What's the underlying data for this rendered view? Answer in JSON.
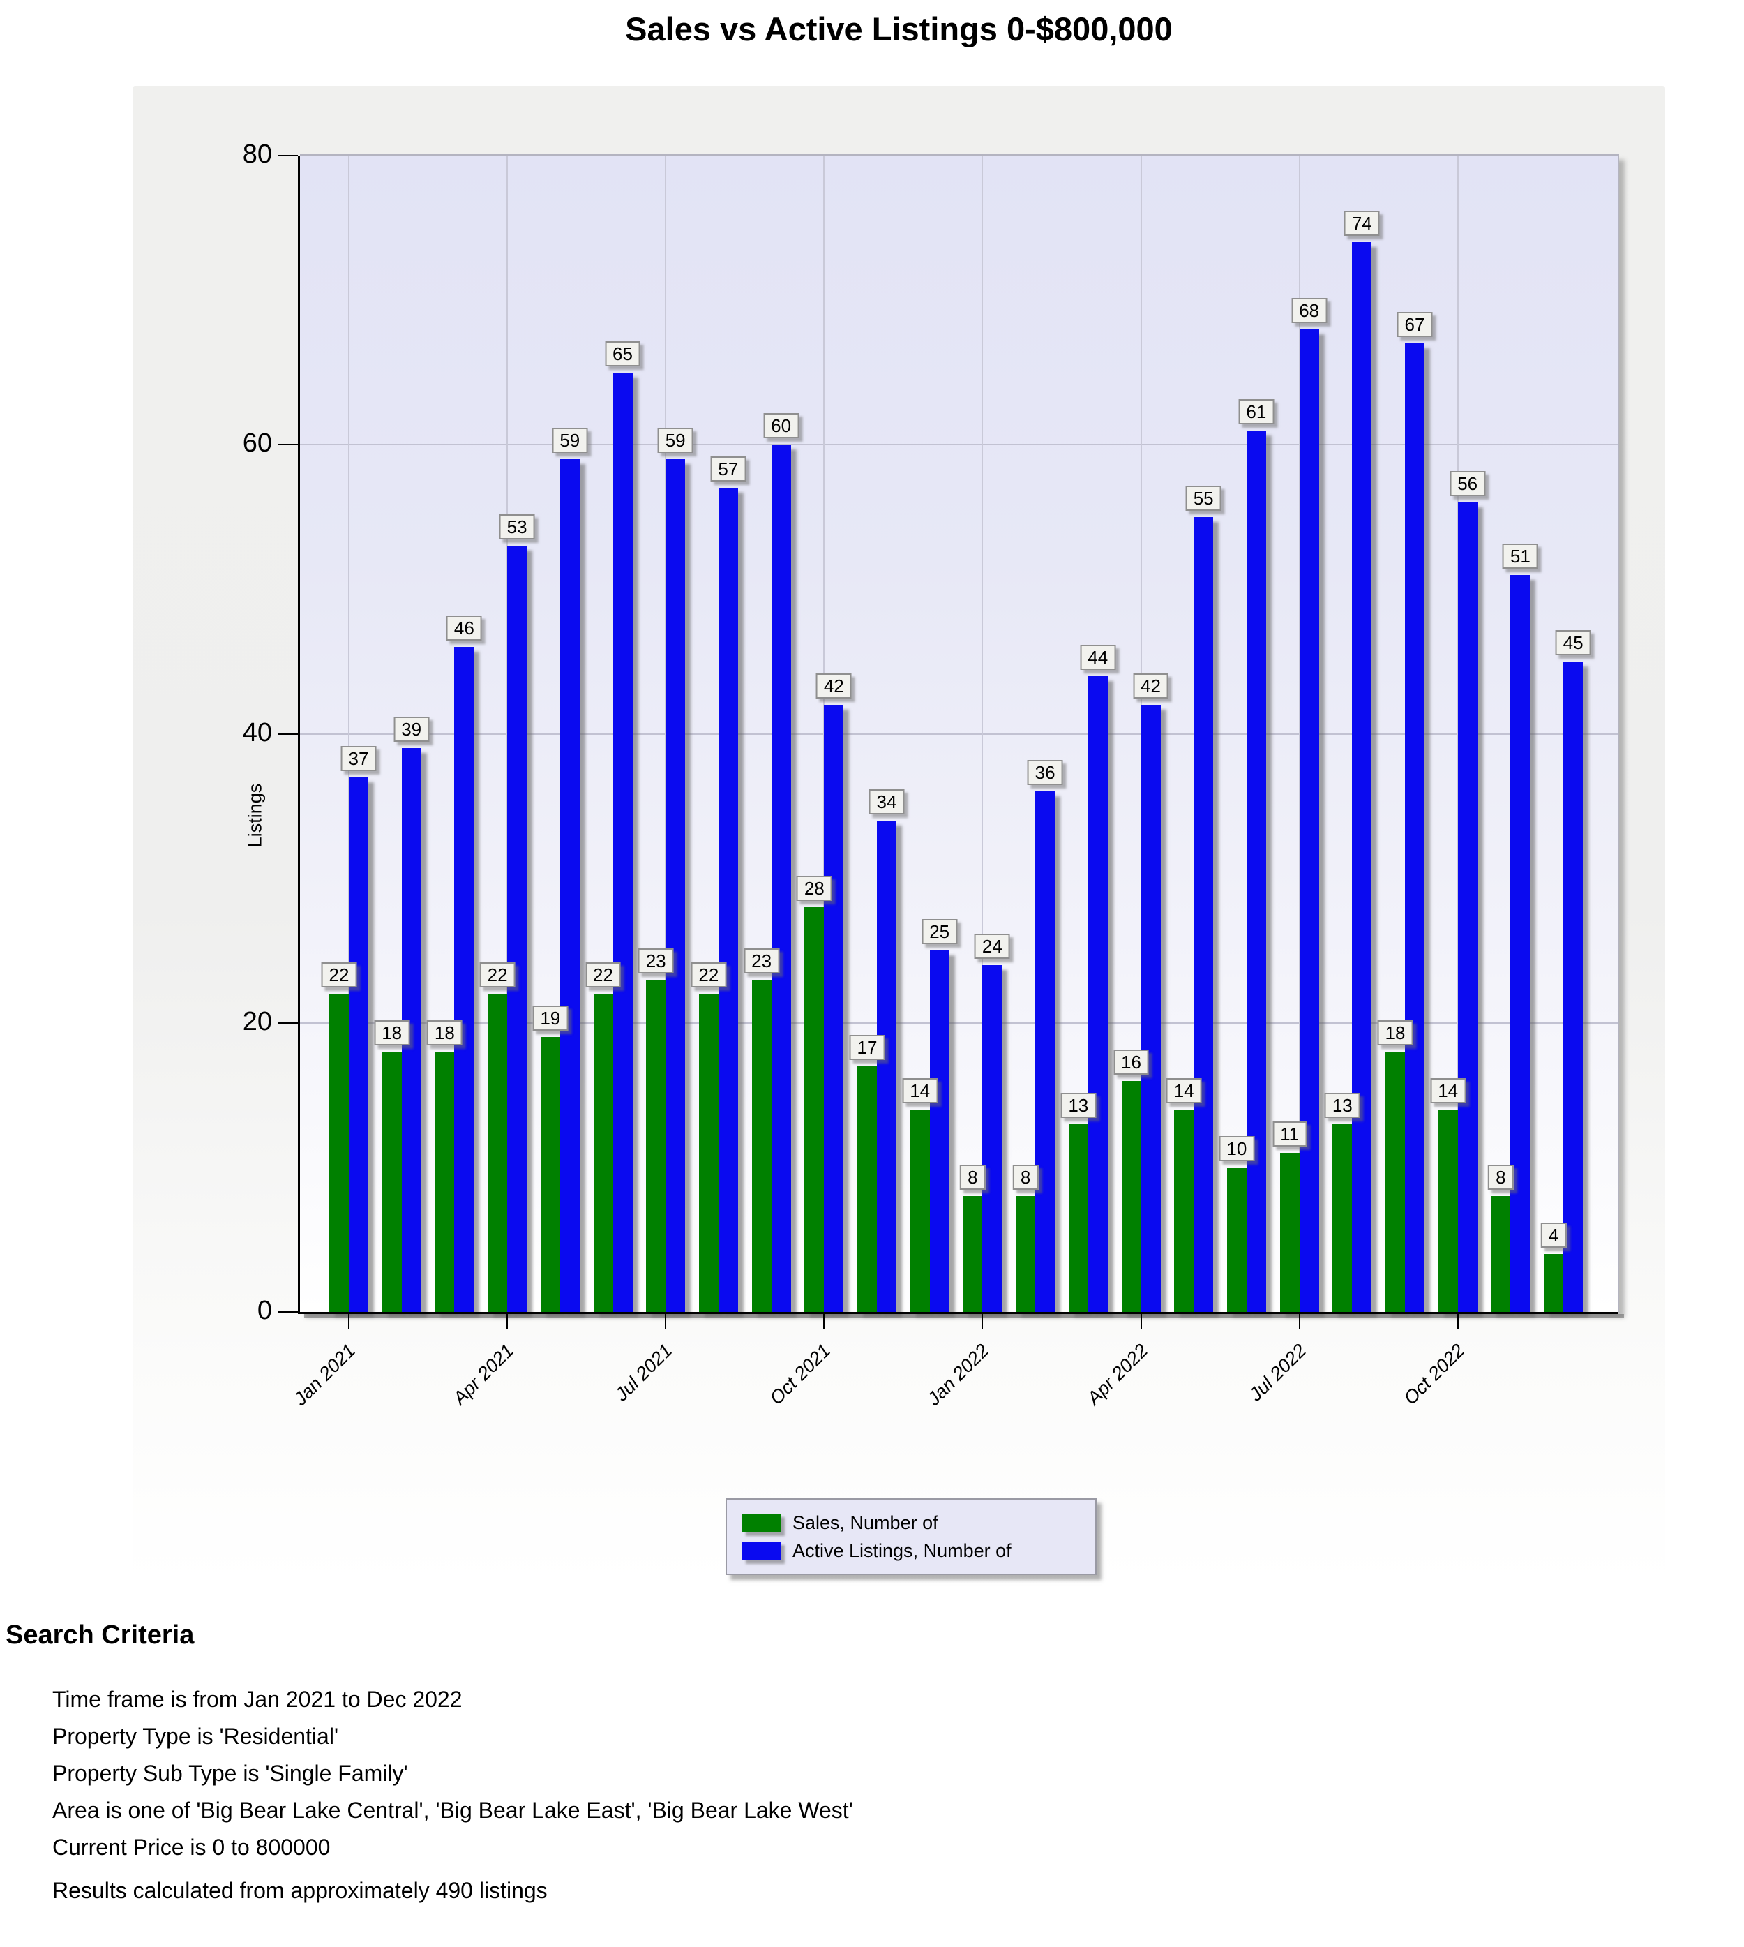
{
  "title": "Sales vs Active Listings 0-$800,000",
  "chart_data": {
    "type": "bar",
    "title": "Sales vs Active Listings 0-$800,000",
    "categories": [
      "Jan 2021",
      "Feb 2021",
      "Mar 2021",
      "Apr 2021",
      "May 2021",
      "Jun 2021",
      "Jul 2021",
      "Aug 2021",
      "Sep 2021",
      "Oct 2021",
      "Nov 2021",
      "Dec 2021",
      "Jan 2022",
      "Feb 2022",
      "Mar 2022",
      "Apr 2022",
      "May 2022",
      "Jun 2022",
      "Jul 2022",
      "Aug 2022",
      "Sep 2022",
      "Oct 2022",
      "Nov 2022",
      "Dec 2022"
    ],
    "x_tick_labels": [
      "Jan 2021",
      "Apr 2021",
      "Jul 2021",
      "Oct 2021",
      "Jan 2022",
      "Apr 2022",
      "Jul 2022",
      "Oct 2022"
    ],
    "x_tick_indices": [
      0,
      3,
      6,
      9,
      12,
      15,
      18,
      21
    ],
    "series": [
      {
        "name": "Sales, Number of",
        "color": "#008000",
        "values": [
          22,
          18,
          18,
          22,
          19,
          22,
          23,
          22,
          23,
          28,
          17,
          14,
          8,
          8,
          13,
          16,
          14,
          10,
          11,
          13,
          18,
          14,
          8,
          4
        ]
      },
      {
        "name": "Active Listings, Number of",
        "color": "#0a0af0",
        "values": [
          37,
          39,
          46,
          53,
          59,
          65,
          59,
          57,
          60,
          42,
          34,
          25,
          24,
          36,
          44,
          42,
          55,
          61,
          68,
          74,
          67,
          56,
          51,
          45
        ]
      }
    ],
    "xlabel": "",
    "ylabel": "Listings",
    "ylim": [
      0,
      80
    ],
    "yticks": [
      0,
      20,
      40,
      60,
      80
    ],
    "grid": true,
    "data_labels": true,
    "legend_position": "bottom-center"
  },
  "search_criteria": {
    "heading": "Search Criteria",
    "lines": [
      "Time frame is from Jan 2021 to Dec 2022",
      "Property Type is 'Residential'",
      "Property Sub Type is 'Single Family'",
      "Area is one of 'Big Bear Lake Central', 'Big Bear Lake East', 'Big Bear Lake West'",
      "Current Price is 0 to 800000"
    ],
    "results": "Results calculated from approximately 490 listings"
  }
}
